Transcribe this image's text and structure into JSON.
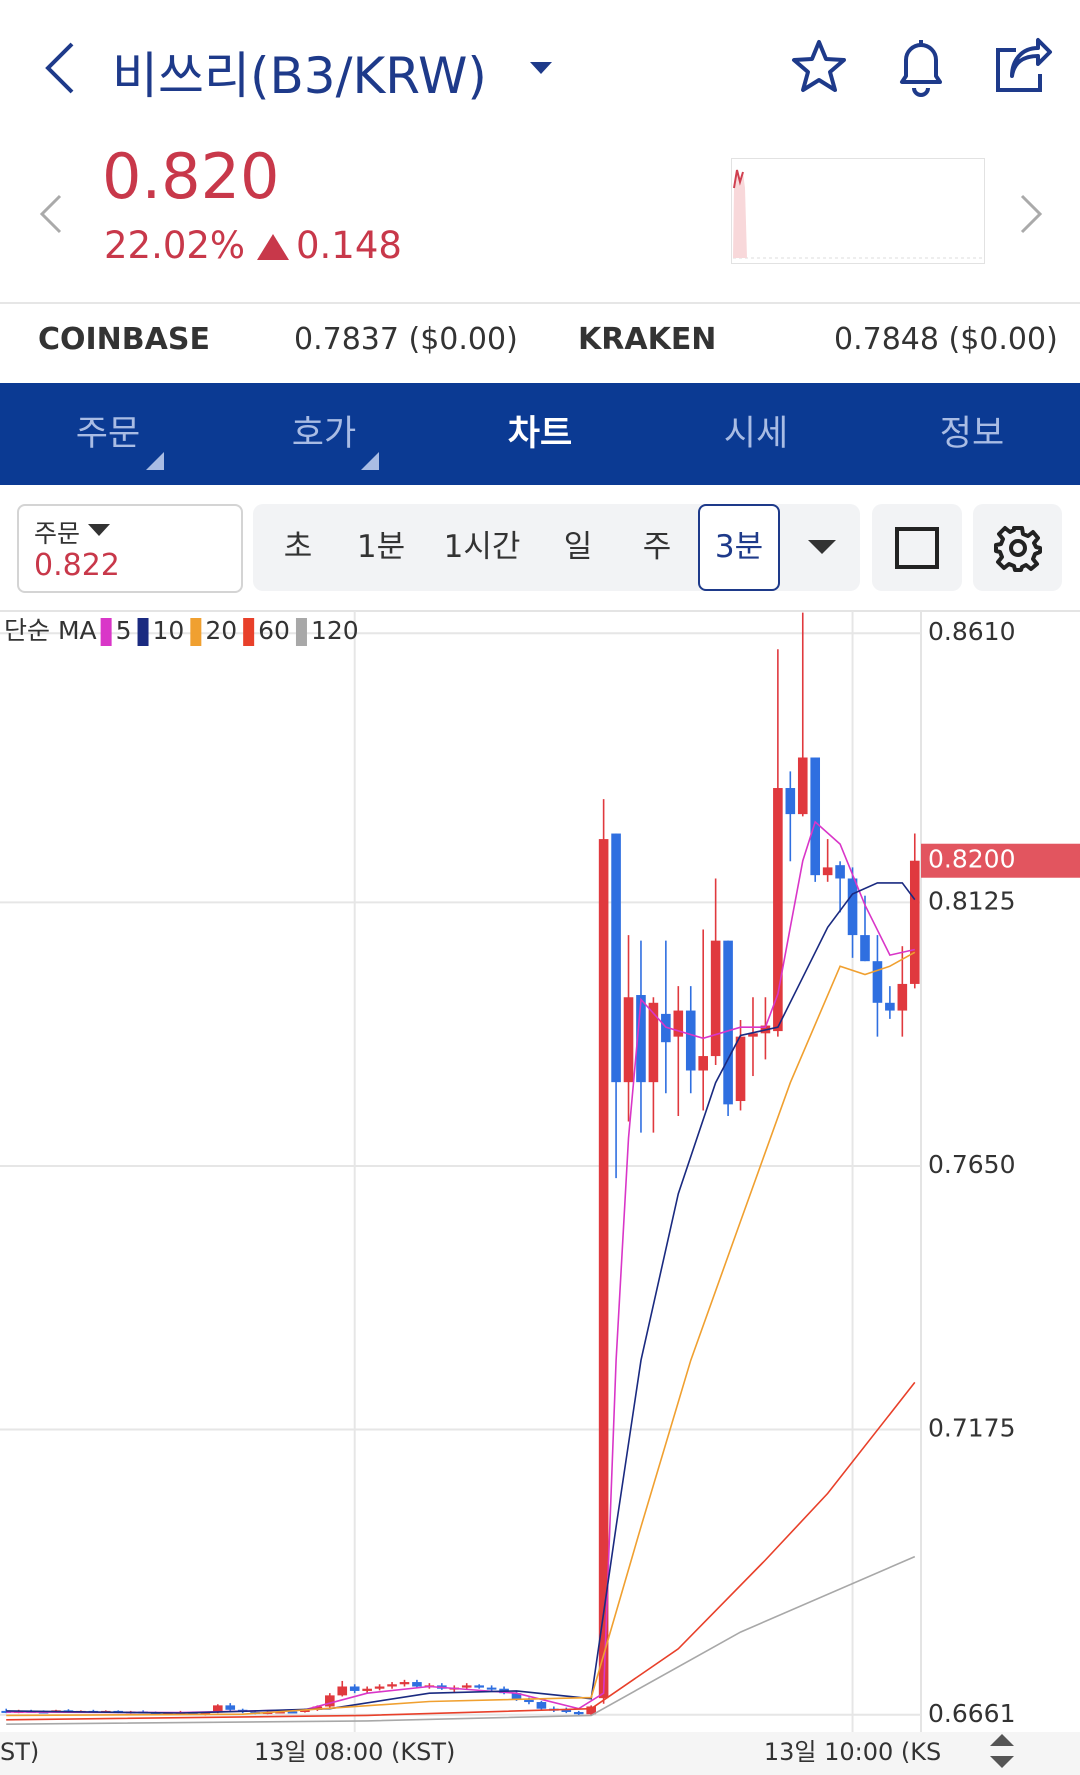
{
  "header": {
    "title": "비쓰리(B3/KRW)",
    "price": "0.820",
    "change_percent": "22.02%",
    "change": "0.148"
  },
  "exchanges": [
    {
      "name": "COINBASE",
      "price": "0.7837 ($0.00)"
    },
    {
      "name": "KRAKEN",
      "price": "0.7848 ($0.00)"
    }
  ],
  "tabs": [
    "주문",
    "호가",
    "차트",
    "시세",
    "정보"
  ],
  "order": {
    "label": "주문",
    "price": "0.822"
  },
  "intervals": [
    "초",
    "1분",
    "1시간",
    "일",
    "주",
    "3분"
  ],
  "chart_data": {
    "type": "candlestick",
    "legend_title": "단순 MA",
    "up_color": "#e0393e",
    "down_color": "#2f6fe0",
    "xlim": [
      0.5,
      74.5
    ],
    "ylim": [
      0.663,
      0.865
    ],
    "xticks": [
      {
        "value": -11,
        "label": "ST)"
      },
      {
        "value": 29,
        "label": "13일 08:00 (KST)"
      },
      {
        "value": 69,
        "label": "13일 10:00 (KS"
      }
    ],
    "yticks": [
      {
        "value": 0.6661,
        "label": "0.6661"
      },
      {
        "value": 0.7175,
        "label": "0.7175"
      },
      {
        "value": 0.765,
        "label": "0.7650"
      },
      {
        "value": 0.8125,
        "label": "0.8125"
      },
      {
        "value": 0.861,
        "label": "0.8610"
      }
    ],
    "last_price": {
      "value": 0.82,
      "label": "0.8200"
    },
    "grid": true,
    "x": [
      1,
      2,
      3,
      4,
      5,
      6,
      7,
      8,
      9,
      10,
      11,
      12,
      13,
      14,
      15,
      16,
      17,
      18,
      19,
      20,
      21,
      22,
      23,
      24,
      25,
      26,
      27,
      28,
      29,
      30,
      31,
      32,
      33,
      34,
      35,
      36,
      37,
      38,
      39,
      40,
      41,
      42,
      43,
      44,
      45,
      46,
      47,
      48,
      49,
      50,
      51,
      52,
      53,
      54,
      55,
      56,
      57,
      58,
      59,
      60,
      61,
      62,
      63,
      64,
      65,
      66,
      67,
      68,
      69,
      70,
      71,
      72,
      73,
      74
    ],
    "open": [
      0.6668,
      0.6666,
      0.6668,
      0.6667,
      0.6666,
      0.6669,
      0.6667,
      0.6668,
      0.6667,
      0.6668,
      0.6665,
      0.6667,
      0.6665,
      0.6663,
      0.6665,
      0.6666,
      0.6662,
      0.6665,
      0.6678,
      0.667,
      0.6666,
      0.6664,
      0.6666,
      0.6667,
      0.6666,
      0.667,
      0.6676,
      0.6696,
      0.6712,
      0.6704,
      0.6708,
      0.6712,
      0.6716,
      0.672,
      0.6712,
      0.6714,
      0.6708,
      0.671,
      0.6714,
      0.671,
      0.6708,
      0.67,
      0.6688,
      0.6684,
      0.6672,
      0.667,
      0.6666,
      0.6662,
      0.6691,
      0.8249,
      0.7801,
      0.7958,
      0.7801,
      0.7924,
      0.7883,
      0.793,
      0.7822,
      0.7848,
      0.8056,
      0.7767,
      0.7883,
      0.7889,
      0.7893,
      0.8331,
      0.8284,
      0.8386,
      0.8174,
      0.8192,
      0.8168,
      0.8066,
      0.8019,
      0.7944,
      0.793,
      0.7978
    ],
    "high": [
      0.6672,
      0.667,
      0.667,
      0.6669,
      0.667,
      0.6671,
      0.6669,
      0.667,
      0.6669,
      0.6669,
      0.6668,
      0.6669,
      0.6667,
      0.6666,
      0.6668,
      0.6667,
      0.6666,
      0.668,
      0.6682,
      0.6672,
      0.6668,
      0.6667,
      0.6668,
      0.6669,
      0.6672,
      0.6678,
      0.67,
      0.6722,
      0.6716,
      0.6712,
      0.6716,
      0.672,
      0.6724,
      0.6724,
      0.6718,
      0.6718,
      0.6714,
      0.6718,
      0.6716,
      0.6714,
      0.6712,
      0.6704,
      0.6692,
      0.6686,
      0.6676,
      0.6674,
      0.6668,
      0.6678,
      0.8311,
      0.8249,
      0.8066,
      0.8056,
      0.7954,
      0.8056,
      0.7974,
      0.7974,
      0.8076,
      0.8168,
      0.8056,
      0.7913,
      0.7954,
      0.7954,
      0.8581,
      0.8361,
      0.8647,
      0.8386,
      0.8239,
      0.8199,
      0.8188,
      0.8137,
      0.8066,
      0.7974,
      0.8046,
      0.8249
    ],
    "low": [
      0.6664,
      0.6664,
      0.6665,
      0.6664,
      0.6665,
      0.6666,
      0.6665,
      0.6666,
      0.6665,
      0.6664,
      0.6663,
      0.6664,
      0.6662,
      0.6661,
      0.6663,
      0.6661,
      0.666,
      0.6664,
      0.6668,
      0.6664,
      0.6662,
      0.6662,
      0.6664,
      0.6665,
      0.6665,
      0.6668,
      0.6674,
      0.6694,
      0.67,
      0.67,
      0.6705,
      0.6708,
      0.6712,
      0.671,
      0.6708,
      0.6706,
      0.6702,
      0.6706,
      0.6708,
      0.6704,
      0.6698,
      0.6686,
      0.668,
      0.667,
      0.6666,
      0.6664,
      0.666,
      0.666,
      0.6681,
      0.7628,
      0.773,
      0.771,
      0.771,
      0.7781,
      0.774,
      0.7781,
      0.775,
      0.7832,
      0.774,
      0.775,
      0.7812,
      0.7842,
      0.7883,
      0.8199,
      0.828,
      0.8162,
      0.8162,
      0.8107,
      0.8025,
      0.8019,
      0.7883,
      0.7915,
      0.7883,
      0.797
    ],
    "close": [
      0.6666,
      0.6668,
      0.6667,
      0.6666,
      0.6669,
      0.6667,
      0.6668,
      0.6667,
      0.6668,
      0.6665,
      0.6667,
      0.6665,
      0.6663,
      0.6665,
      0.6666,
      0.6662,
      0.6665,
      0.6678,
      0.667,
      0.6666,
      0.6664,
      0.6666,
      0.6667,
      0.6666,
      0.667,
      0.6676,
      0.6696,
      0.6712,
      0.6704,
      0.6708,
      0.6712,
      0.6716,
      0.672,
      0.6712,
      0.6714,
      0.6708,
      0.671,
      0.6714,
      0.671,
      0.6708,
      0.67,
      0.6688,
      0.6684,
      0.6672,
      0.667,
      0.6666,
      0.6662,
      0.6676,
      0.8239,
      0.7801,
      0.7954,
      0.7801,
      0.7944,
      0.7873,
      0.793,
      0.7822,
      0.7848,
      0.8056,
      0.7761,
      0.7883,
      0.7889,
      0.7903,
      0.8331,
      0.8284,
      0.8386,
      0.8174,
      0.8188,
      0.8168,
      0.8066,
      0.8019,
      0.7944,
      0.793,
      0.7978,
      0.82
    ],
    "series": [
      {
        "name": "5",
        "color": "#d936c8",
        "x": [
          1,
          15,
          25,
          30,
          35,
          42,
          47,
          49,
          50,
          51,
          52,
          54,
          57,
          60,
          62,
          63,
          64,
          65,
          66,
          68,
          70,
          72,
          74
        ],
        "values": [
          0.6666,
          0.6665,
          0.667,
          0.67,
          0.6712,
          0.67,
          0.6672,
          0.67,
          0.73,
          0.77,
          0.795,
          0.79,
          0.788,
          0.79,
          0.79,
          0.796,
          0.808,
          0.82,
          0.827,
          0.823,
          0.812,
          0.803,
          0.804
        ]
      },
      {
        "name": "10",
        "color": "#1a2a80",
        "x": [
          1,
          15,
          27,
          35,
          42,
          48,
          50,
          52,
          55,
          58,
          60,
          63,
          65,
          67,
          69,
          71,
          73,
          74
        ],
        "values": [
          0.6668,
          0.6664,
          0.6672,
          0.67,
          0.6704,
          0.669,
          0.7,
          0.73,
          0.76,
          0.78,
          0.7885,
          0.79,
          0.799,
          0.808,
          0.814,
          0.816,
          0.816,
          0.813
        ]
      },
      {
        "name": "20",
        "color": "#f0a030",
        "x": [
          1,
          20,
          35,
          48,
          52,
          56,
          60,
          64,
          68,
          70,
          72,
          74
        ],
        "values": [
          0.666,
          0.6662,
          0.6685,
          0.6692,
          0.7,
          0.73,
          0.755,
          0.78,
          0.801,
          0.7995,
          0.801,
          0.8035
        ]
      },
      {
        "name": "60",
        "color": "#e8402a",
        "x": [
          1,
          30,
          48,
          55,
          62,
          67,
          74
        ],
        "values": [
          0.6652,
          0.666,
          0.6672,
          0.678,
          0.694,
          0.706,
          0.726
        ]
      },
      {
        "name": "120",
        "color": "#a8a8a8",
        "x": [
          1,
          30,
          48,
          60,
          74
        ],
        "values": [
          0.6644,
          0.665,
          0.666,
          0.681,
          0.6946
        ]
      }
    ]
  }
}
